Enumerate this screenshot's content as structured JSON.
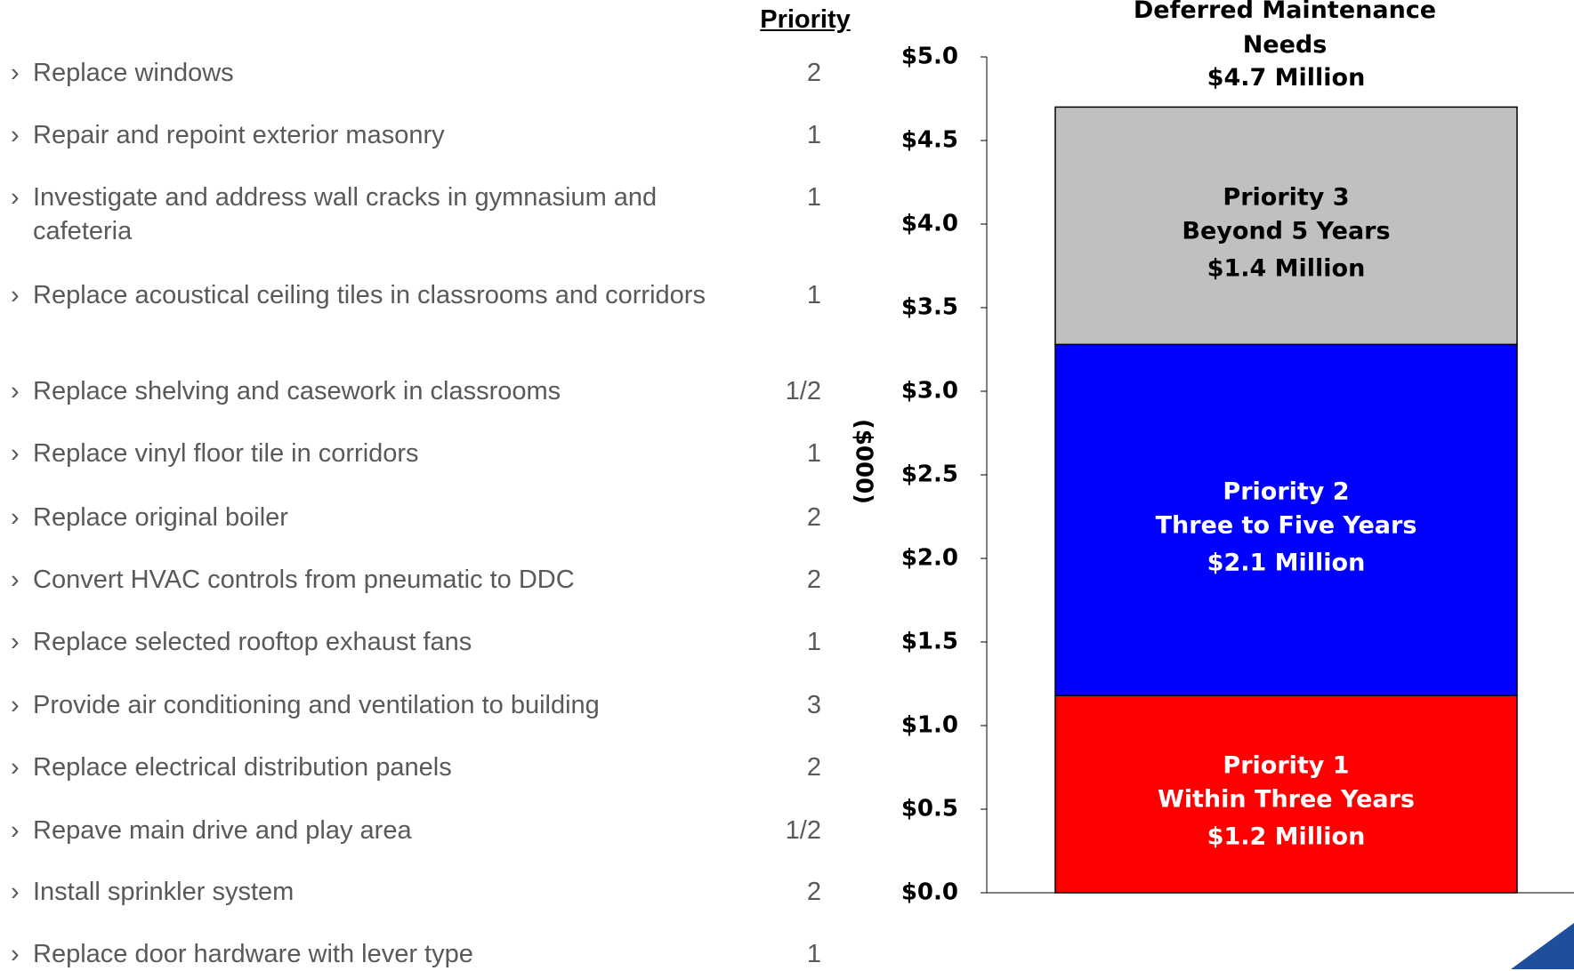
{
  "list": {
    "header": "Priority",
    "bullet": "›",
    "items": [
      {
        "text": "Replace windows",
        "priority": "2"
      },
      {
        "text": "Repair and repoint exterior masonry",
        "priority": "1"
      },
      {
        "text": "Investigate and address wall cracks in gymnasium and cafeteria",
        "priority": "1"
      },
      {
        "text": "Replace acoustical ceiling tiles in classrooms and corridors",
        "priority": "1"
      },
      {
        "text": "Replace shelving and casework in classrooms",
        "priority": "1/2"
      },
      {
        "text": "Replace vinyl floor tile in corridors",
        "priority": "1"
      },
      {
        "text": "Replace original boiler",
        "priority": "2"
      },
      {
        "text": "Convert HVAC controls from pneumatic to DDC",
        "priority": "2"
      },
      {
        "text": "Replace selected rooftop exhaust fans",
        "priority": "1"
      },
      {
        "text": "Provide air conditioning and ventilation to building",
        "priority": "3"
      },
      {
        "text": "Replace electrical distribution panels",
        "priority": "2"
      },
      {
        "text": "Repave main drive and play area",
        "priority": "1/2"
      },
      {
        "text": "Install sprinkler system",
        "priority": "2"
      },
      {
        "text": "Replace door hardware with lever type",
        "priority": "1"
      }
    ]
  },
  "chart_data": {
    "type": "stacked_bar",
    "title": "Deferred Maintenance Needs",
    "ylabel": "($000)",
    "total": 4.7,
    "total_label": "$4.7  Million",
    "ylim": [
      0,
      5
    ],
    "yticks": [
      {
        "value": 0,
        "label": "$0.0"
      },
      {
        "value": 0.5,
        "label": "$0.5"
      },
      {
        "value": 1,
        "label": "$1.0"
      },
      {
        "value": 1.5,
        "label": "$1.5"
      },
      {
        "value": 2,
        "label": "$2.0"
      },
      {
        "value": 2.5,
        "label": "$2.5"
      },
      {
        "value": 3,
        "label": "$3.0"
      },
      {
        "value": 3.5,
        "label": "$3.5"
      },
      {
        "value": 4,
        "label": "$4.0"
      },
      {
        "value": 4.5,
        "label": "$4.5"
      },
      {
        "value": 5,
        "label": "$5.0"
      }
    ],
    "series": [
      {
        "name": "Priority 1",
        "description": "Within Three Years",
        "color": "#ff0000",
        "text_color": "#ffffff",
        "values": [
          1.18
        ],
        "value_labels": [
          "$1.2  Million"
        ]
      },
      {
        "name": "Priority 2",
        "description": "Three to Five Years",
        "color": "#0000ff",
        "text_color": "#ffffff",
        "values": [
          2.1
        ],
        "value_labels": [
          "$2.1  Million"
        ]
      },
      {
        "name": "Priority 3",
        "description": "Beyond 5 Years",
        "color": "#c0c0c0",
        "text_color": "#000000",
        "values": [
          1.42
        ],
        "value_labels": [
          "$1.4  Million"
        ]
      }
    ]
  }
}
